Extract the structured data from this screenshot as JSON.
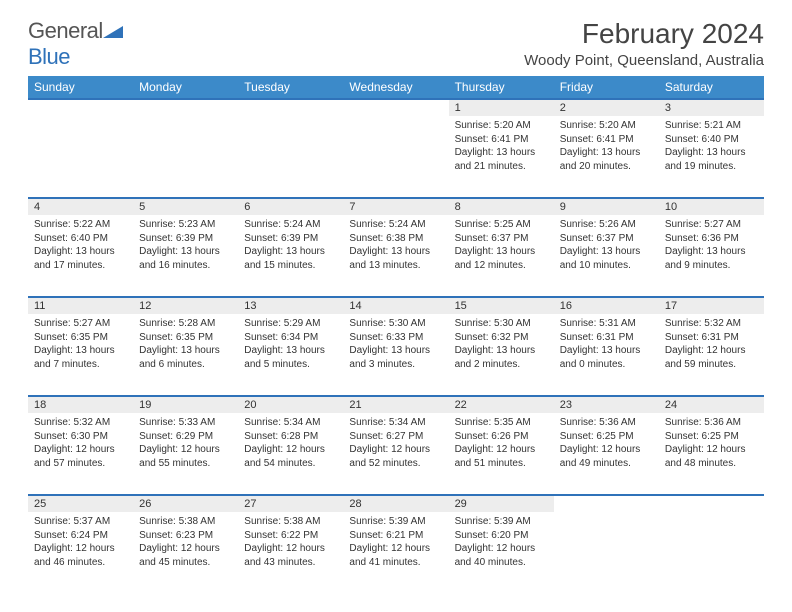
{
  "logo": {
    "word1": "General",
    "word2": "Blue"
  },
  "title": "February 2024",
  "location": "Woody Point, Queensland, Australia",
  "colors": {
    "header_bg": "#3c8ac9",
    "accent_border": "#2f72b9",
    "daynum_bg": "#ededed",
    "text": "#333333"
  },
  "day_headers": [
    "Sunday",
    "Monday",
    "Tuesday",
    "Wednesday",
    "Thursday",
    "Friday",
    "Saturday"
  ],
  "weeks": [
    [
      null,
      null,
      null,
      null,
      {
        "n": "1",
        "sr": "5:20 AM",
        "ss": "6:41 PM",
        "dl": "13 hours and 21 minutes."
      },
      {
        "n": "2",
        "sr": "5:20 AM",
        "ss": "6:41 PM",
        "dl": "13 hours and 20 minutes."
      },
      {
        "n": "3",
        "sr": "5:21 AM",
        "ss": "6:40 PM",
        "dl": "13 hours and 19 minutes."
      }
    ],
    [
      {
        "n": "4",
        "sr": "5:22 AM",
        "ss": "6:40 PM",
        "dl": "13 hours and 17 minutes."
      },
      {
        "n": "5",
        "sr": "5:23 AM",
        "ss": "6:39 PM",
        "dl": "13 hours and 16 minutes."
      },
      {
        "n": "6",
        "sr": "5:24 AM",
        "ss": "6:39 PM",
        "dl": "13 hours and 15 minutes."
      },
      {
        "n": "7",
        "sr": "5:24 AM",
        "ss": "6:38 PM",
        "dl": "13 hours and 13 minutes."
      },
      {
        "n": "8",
        "sr": "5:25 AM",
        "ss": "6:37 PM",
        "dl": "13 hours and 12 minutes."
      },
      {
        "n": "9",
        "sr": "5:26 AM",
        "ss": "6:37 PM",
        "dl": "13 hours and 10 minutes."
      },
      {
        "n": "10",
        "sr": "5:27 AM",
        "ss": "6:36 PM",
        "dl": "13 hours and 9 minutes."
      }
    ],
    [
      {
        "n": "11",
        "sr": "5:27 AM",
        "ss": "6:35 PM",
        "dl": "13 hours and 7 minutes."
      },
      {
        "n": "12",
        "sr": "5:28 AM",
        "ss": "6:35 PM",
        "dl": "13 hours and 6 minutes."
      },
      {
        "n": "13",
        "sr": "5:29 AM",
        "ss": "6:34 PM",
        "dl": "13 hours and 5 minutes."
      },
      {
        "n": "14",
        "sr": "5:30 AM",
        "ss": "6:33 PM",
        "dl": "13 hours and 3 minutes."
      },
      {
        "n": "15",
        "sr": "5:30 AM",
        "ss": "6:32 PM",
        "dl": "13 hours and 2 minutes."
      },
      {
        "n": "16",
        "sr": "5:31 AM",
        "ss": "6:31 PM",
        "dl": "13 hours and 0 minutes."
      },
      {
        "n": "17",
        "sr": "5:32 AM",
        "ss": "6:31 PM",
        "dl": "12 hours and 59 minutes."
      }
    ],
    [
      {
        "n": "18",
        "sr": "5:32 AM",
        "ss": "6:30 PM",
        "dl": "12 hours and 57 minutes."
      },
      {
        "n": "19",
        "sr": "5:33 AM",
        "ss": "6:29 PM",
        "dl": "12 hours and 55 minutes."
      },
      {
        "n": "20",
        "sr": "5:34 AM",
        "ss": "6:28 PM",
        "dl": "12 hours and 54 minutes."
      },
      {
        "n": "21",
        "sr": "5:34 AM",
        "ss": "6:27 PM",
        "dl": "12 hours and 52 minutes."
      },
      {
        "n": "22",
        "sr": "5:35 AM",
        "ss": "6:26 PM",
        "dl": "12 hours and 51 minutes."
      },
      {
        "n": "23",
        "sr": "5:36 AM",
        "ss": "6:25 PM",
        "dl": "12 hours and 49 minutes."
      },
      {
        "n": "24",
        "sr": "5:36 AM",
        "ss": "6:25 PM",
        "dl": "12 hours and 48 minutes."
      }
    ],
    [
      {
        "n": "25",
        "sr": "5:37 AM",
        "ss": "6:24 PM",
        "dl": "12 hours and 46 minutes."
      },
      {
        "n": "26",
        "sr": "5:38 AM",
        "ss": "6:23 PM",
        "dl": "12 hours and 45 minutes."
      },
      {
        "n": "27",
        "sr": "5:38 AM",
        "ss": "6:22 PM",
        "dl": "12 hours and 43 minutes."
      },
      {
        "n": "28",
        "sr": "5:39 AM",
        "ss": "6:21 PM",
        "dl": "12 hours and 41 minutes."
      },
      {
        "n": "29",
        "sr": "5:39 AM",
        "ss": "6:20 PM",
        "dl": "12 hours and 40 minutes."
      },
      null,
      null
    ]
  ],
  "labels": {
    "sunrise": "Sunrise:",
    "sunset": "Sunset:",
    "daylight": "Daylight:"
  }
}
